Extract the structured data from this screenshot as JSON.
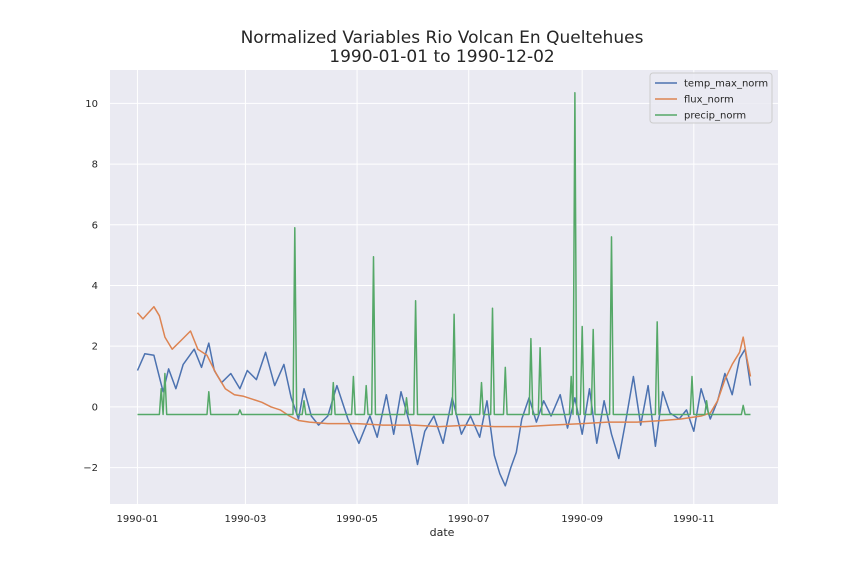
{
  "chart_data": {
    "type": "line",
    "title": "Normalized Variables Rio Volcan En Queltehues",
    "subtitle": "1990-01-01 to 1990-12-02",
    "xlabel": "date",
    "ylabel": "",
    "xlim": [
      "1989-12-17",
      "1990-12-17"
    ],
    "ylim": [
      -3.2,
      11.1
    ],
    "x_ticks": [
      "1990-01",
      "1990-03",
      "1990-05",
      "1990-07",
      "1990-09",
      "1990-11"
    ],
    "y_ticks": [
      -2,
      0,
      2,
      4,
      6,
      8,
      10
    ],
    "grid": true,
    "legend_position": "upper right",
    "series": [
      {
        "name": "temp_max_norm",
        "color": "#4c72b0",
        "points": [
          [
            "1990-01-01",
            1.2
          ],
          [
            "1990-01-05",
            1.75
          ],
          [
            "1990-01-10",
            1.7
          ],
          [
            "1990-01-15",
            0.5
          ],
          [
            "1990-01-18",
            1.25
          ],
          [
            "1990-01-22",
            0.6
          ],
          [
            "1990-01-26",
            1.4
          ],
          [
            "1990-02-01",
            1.9
          ],
          [
            "1990-02-05",
            1.3
          ],
          [
            "1990-02-09",
            2.1
          ],
          [
            "1990-02-12",
            1.2
          ],
          [
            "1990-02-16",
            0.8
          ],
          [
            "1990-02-21",
            1.1
          ],
          [
            "1990-02-26",
            0.6
          ],
          [
            "1990-03-02",
            1.2
          ],
          [
            "1990-03-07",
            0.9
          ],
          [
            "1990-03-12",
            1.8
          ],
          [
            "1990-03-17",
            0.7
          ],
          [
            "1990-03-22",
            1.4
          ],
          [
            "1990-03-26",
            0.3
          ],
          [
            "1990-03-30",
            -0.4
          ],
          [
            "1990-04-02",
            0.6
          ],
          [
            "1990-04-06",
            -0.3
          ],
          [
            "1990-04-10",
            -0.6
          ],
          [
            "1990-04-15",
            -0.3
          ],
          [
            "1990-04-20",
            0.7
          ],
          [
            "1990-04-26",
            -0.4
          ],
          [
            "1990-05-02",
            -1.2
          ],
          [
            "1990-05-08",
            -0.3
          ],
          [
            "1990-05-12",
            -1.0
          ],
          [
            "1990-05-17",
            0.4
          ],
          [
            "1990-05-21",
            -0.9
          ],
          [
            "1990-05-25",
            0.5
          ],
          [
            "1990-05-30",
            -0.6
          ],
          [
            "1990-06-03",
            -1.9
          ],
          [
            "1990-06-07",
            -0.8
          ],
          [
            "1990-06-12",
            -0.3
          ],
          [
            "1990-06-17",
            -1.2
          ],
          [
            "1990-06-22",
            0.3
          ],
          [
            "1990-06-27",
            -0.9
          ],
          [
            "1990-07-02",
            -0.3
          ],
          [
            "1990-07-07",
            -1.0
          ],
          [
            "1990-07-11",
            0.2
          ],
          [
            "1990-07-15",
            -1.6
          ],
          [
            "1990-07-18",
            -2.2
          ],
          [
            "1990-07-21",
            -2.6
          ],
          [
            "1990-07-24",
            -2.0
          ],
          [
            "1990-07-27",
            -1.5
          ],
          [
            "1990-07-30",
            -0.4
          ],
          [
            "1990-08-03",
            0.3
          ],
          [
            "1990-08-07",
            -0.5
          ],
          [
            "1990-08-11",
            0.2
          ],
          [
            "1990-08-15",
            -0.3
          ],
          [
            "1990-08-20",
            0.4
          ],
          [
            "1990-08-24",
            -0.7
          ],
          [
            "1990-08-28",
            0.3
          ],
          [
            "1990-09-01",
            -0.9
          ],
          [
            "1990-09-05",
            0.6
          ],
          [
            "1990-09-09",
            -1.2
          ],
          [
            "1990-09-13",
            0.2
          ],
          [
            "1990-09-17",
            -0.9
          ],
          [
            "1990-09-21",
            -1.7
          ],
          [
            "1990-09-25",
            -0.4
          ],
          [
            "1990-09-29",
            1.0
          ],
          [
            "1990-10-03",
            -0.6
          ],
          [
            "1990-10-07",
            0.7
          ],
          [
            "1990-10-11",
            -1.3
          ],
          [
            "1990-10-15",
            0.5
          ],
          [
            "1990-10-19",
            -0.2
          ],
          [
            "1990-10-24",
            -0.4
          ],
          [
            "1990-10-28",
            -0.1
          ],
          [
            "1990-11-01",
            -0.8
          ],
          [
            "1990-11-05",
            0.6
          ],
          [
            "1990-11-10",
            -0.4
          ],
          [
            "1990-11-14",
            0.2
          ],
          [
            "1990-11-18",
            1.1
          ],
          [
            "1990-11-22",
            0.4
          ],
          [
            "1990-11-26",
            1.6
          ],
          [
            "1990-11-29",
            1.9
          ],
          [
            "1990-12-02",
            0.7
          ]
        ]
      },
      {
        "name": "flux_norm",
        "color": "#dd8452",
        "points": [
          [
            "1990-01-01",
            3.1
          ],
          [
            "1990-01-04",
            2.9
          ],
          [
            "1990-01-07",
            3.1
          ],
          [
            "1990-01-10",
            3.3
          ],
          [
            "1990-01-13",
            3.0
          ],
          [
            "1990-01-16",
            2.3
          ],
          [
            "1990-01-20",
            1.9
          ],
          [
            "1990-01-25",
            2.2
          ],
          [
            "1990-01-30",
            2.5
          ],
          [
            "1990-02-03",
            1.9
          ],
          [
            "1990-02-08",
            1.7
          ],
          [
            "1990-02-13",
            1.1
          ],
          [
            "1990-02-18",
            0.6
          ],
          [
            "1990-02-23",
            0.4
          ],
          [
            "1990-02-28",
            0.35
          ],
          [
            "1990-03-05",
            0.25
          ],
          [
            "1990-03-10",
            0.15
          ],
          [
            "1990-03-15",
            0.0
          ],
          [
            "1990-03-20",
            -0.1
          ],
          [
            "1990-03-25",
            -0.3
          ],
          [
            "1990-03-30",
            -0.45
          ],
          [
            "1990-04-05",
            -0.5
          ],
          [
            "1990-04-15",
            -0.55
          ],
          [
            "1990-05-01",
            -0.55
          ],
          [
            "1990-05-15",
            -0.6
          ],
          [
            "1990-06-01",
            -0.6
          ],
          [
            "1990-06-15",
            -0.65
          ],
          [
            "1990-07-01",
            -0.6
          ],
          [
            "1990-07-15",
            -0.65
          ],
          [
            "1990-08-01",
            -0.65
          ],
          [
            "1990-08-15",
            -0.6
          ],
          [
            "1990-09-01",
            -0.55
          ],
          [
            "1990-09-15",
            -0.5
          ],
          [
            "1990-10-01",
            -0.5
          ],
          [
            "1990-10-15",
            -0.45
          ],
          [
            "1990-10-25",
            -0.4
          ],
          [
            "1990-11-05",
            -0.3
          ],
          [
            "1990-11-10",
            -0.2
          ],
          [
            "1990-11-14",
            0.2
          ],
          [
            "1990-11-18",
            0.9
          ],
          [
            "1990-11-22",
            1.4
          ],
          [
            "1990-11-26",
            1.8
          ],
          [
            "1990-11-28",
            2.3
          ],
          [
            "1990-11-30",
            1.6
          ],
          [
            "1990-12-02",
            1.0
          ]
        ]
      },
      {
        "name": "precip_norm",
        "color": "#55a868",
        "baseline": -0.25,
        "start": "1990-01-01",
        "end": "1990-12-02",
        "spikes": [
          [
            "1990-01-14",
            0.6
          ],
          [
            "1990-01-16",
            1.1
          ],
          [
            "1990-02-09",
            0.5
          ],
          [
            "1990-02-26",
            -0.1
          ],
          [
            "1990-03-28",
            5.9
          ],
          [
            "1990-04-02",
            0.2
          ],
          [
            "1990-04-18",
            0.8
          ],
          [
            "1990-04-29",
            1.0
          ],
          [
            "1990-05-06",
            0.7
          ],
          [
            "1990-05-10",
            4.95
          ],
          [
            "1990-05-28",
            0.3
          ],
          [
            "1990-06-02",
            3.5
          ],
          [
            "1990-06-23",
            3.05
          ],
          [
            "1990-07-08",
            0.8
          ],
          [
            "1990-07-14",
            3.25
          ],
          [
            "1990-07-21",
            1.3
          ],
          [
            "1990-08-04",
            2.25
          ],
          [
            "1990-08-09",
            1.95
          ],
          [
            "1990-08-26",
            1.0
          ],
          [
            "1990-08-28",
            10.35
          ],
          [
            "1990-09-01",
            2.65
          ],
          [
            "1990-09-07",
            2.55
          ],
          [
            "1990-09-17",
            5.6
          ],
          [
            "1990-10-12",
            2.8
          ],
          [
            "1990-10-31",
            1.0
          ],
          [
            "1990-11-08",
            0.2
          ],
          [
            "1990-11-28",
            0.05
          ]
        ]
      }
    ]
  }
}
